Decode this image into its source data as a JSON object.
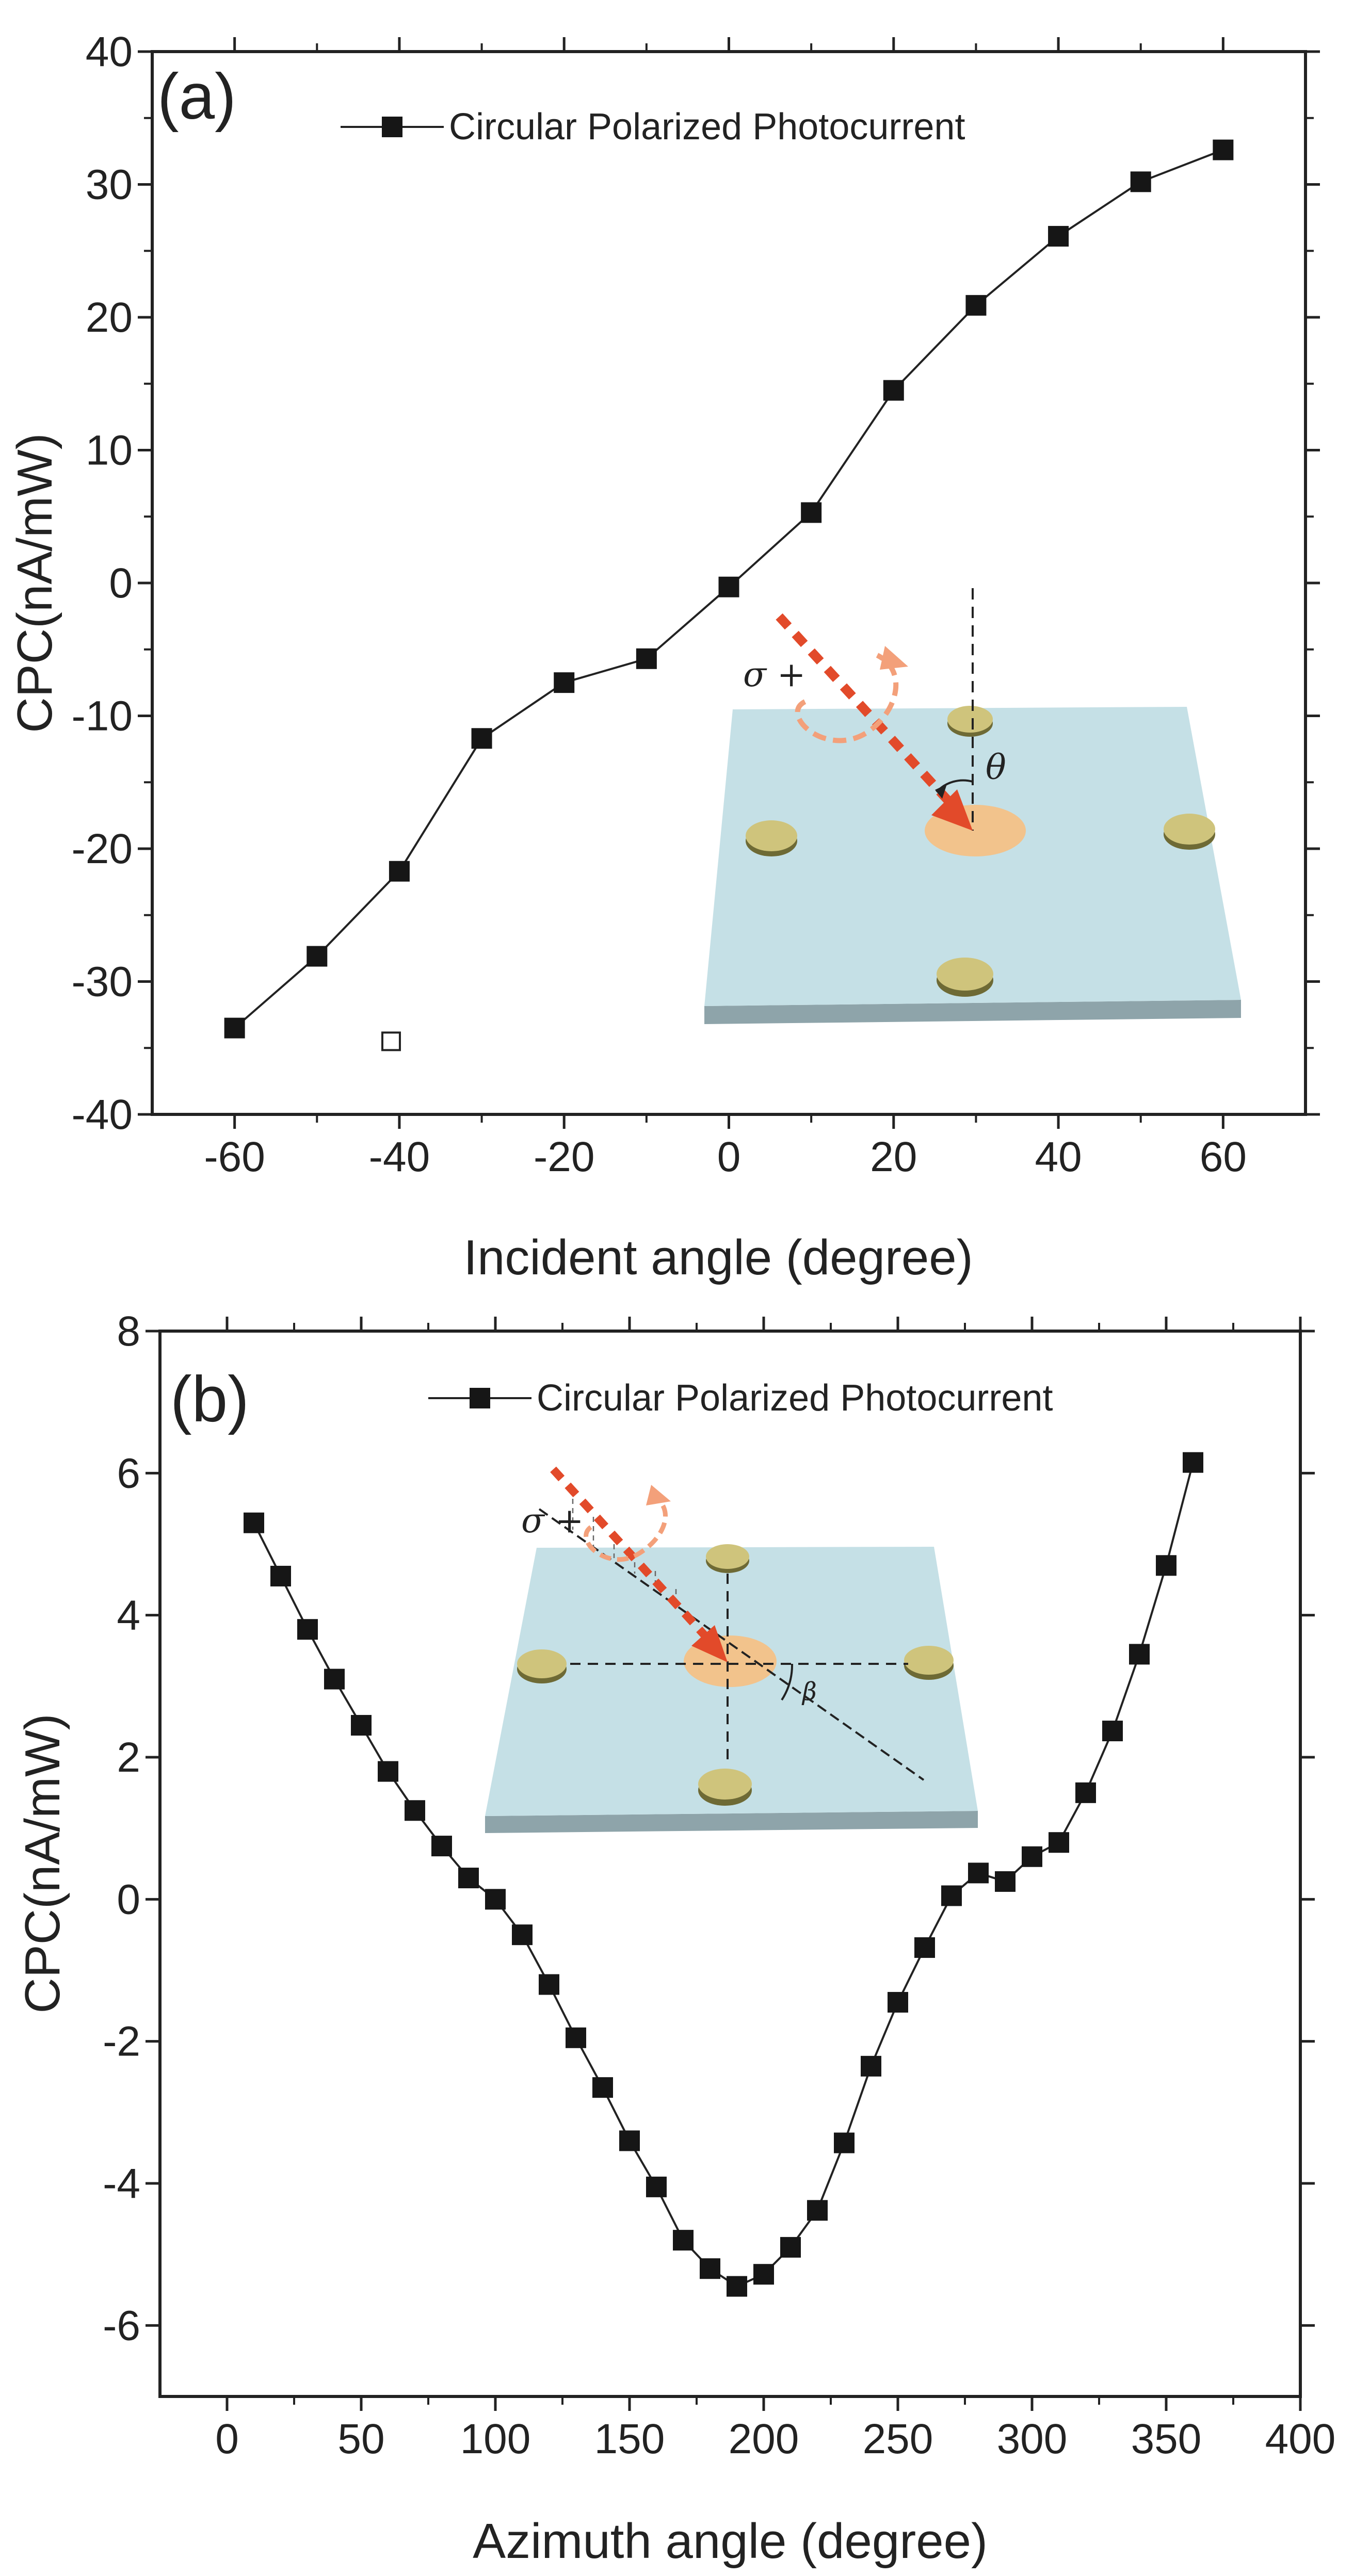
{
  "chart_data": [
    {
      "type": "line",
      "panel_label": "(a)",
      "title": "",
      "xlabel": "Incident angle (degree)",
      "ylabel": "CPC(nA/mW)",
      "xlim": [
        -70,
        70
      ],
      "ylim": [
        -40,
        40
      ],
      "xticks": [
        -60,
        -40,
        -20,
        0,
        20,
        40,
        60
      ],
      "yticks": [
        -40,
        -30,
        -20,
        -10,
        0,
        10,
        20,
        30,
        40
      ],
      "x_tick_labels": [
        "-60",
        "-40",
        "-20",
        "0",
        "20",
        "40",
        "60"
      ],
      "y_tick_labels": [
        "-40",
        "-30",
        "-20",
        "-10",
        "0",
        "10",
        "20",
        "30",
        "40"
      ],
      "grid": false,
      "legend_position": "top-center",
      "series": [
        {
          "name": "Circular Polarized Photocurrent",
          "marker": "square",
          "x": [
            -60,
            -50,
            -40,
            -30,
            -20,
            -10,
            0,
            10,
            20,
            30,
            40,
            50,
            60
          ],
          "y": [
            -33.5,
            -28.1,
            -21.7,
            -11.7,
            -7.5,
            -5.7,
            -0.3,
            5.3,
            14.5,
            20.9,
            26.1,
            30.2,
            32.6
          ]
        }
      ],
      "annotations": {
        "stray_marker": {
          "x": -41,
          "y": -34.5
        },
        "inset": {
          "sigma_label": "σ +",
          "angle_label": "θ"
        }
      }
    },
    {
      "type": "line",
      "panel_label": "(b)",
      "title": "",
      "xlabel": "Azimuth angle (degree)",
      "ylabel": "CPC(nA/mW)",
      "xlim": [
        -25,
        400
      ],
      "ylim": [
        -7,
        8
      ],
      "xticks": [
        0,
        50,
        100,
        150,
        200,
        250,
        300,
        350,
        400
      ],
      "yticks": [
        -6,
        -4,
        -2,
        0,
        2,
        4,
        6,
        8
      ],
      "x_tick_labels": [
        "0",
        "50",
        "100",
        "150",
        "200",
        "250",
        "300",
        "350",
        "400"
      ],
      "y_tick_labels": [
        "-6",
        "-4",
        "-2",
        "0",
        "2",
        "4",
        "6",
        "8"
      ],
      "grid": false,
      "legend_position": "top-center",
      "series": [
        {
          "name": "Circular Polarized Photocurrent",
          "marker": "square",
          "x": [
            10,
            20,
            30,
            40,
            50,
            60,
            70,
            80,
            90,
            100,
            110,
            120,
            130,
            140,
            150,
            160,
            170,
            180,
            190,
            200,
            210,
            220,
            230,
            240,
            250,
            260,
            270,
            280,
            290,
            300,
            310,
            320,
            330,
            340,
            350,
            360
          ],
          "y": [
            5.3,
            4.55,
            3.8,
            3.1,
            2.45,
            1.8,
            1.25,
            0.75,
            0.3,
            0.0,
            -0.5,
            -1.2,
            -1.95,
            -2.65,
            -3.4,
            -4.05,
            -4.8,
            -5.2,
            -5.45,
            -5.28,
            -4.9,
            -4.38,
            -3.43,
            -2.35,
            -1.45,
            -0.68,
            0.05,
            0.37,
            0.25,
            0.6,
            0.8,
            1.5,
            2.37,
            3.45,
            4.7,
            6.15
          ]
        }
      ],
      "annotations": {
        "inset": {
          "sigma_label": "σ +",
          "angle_label": "β"
        }
      }
    }
  ]
}
